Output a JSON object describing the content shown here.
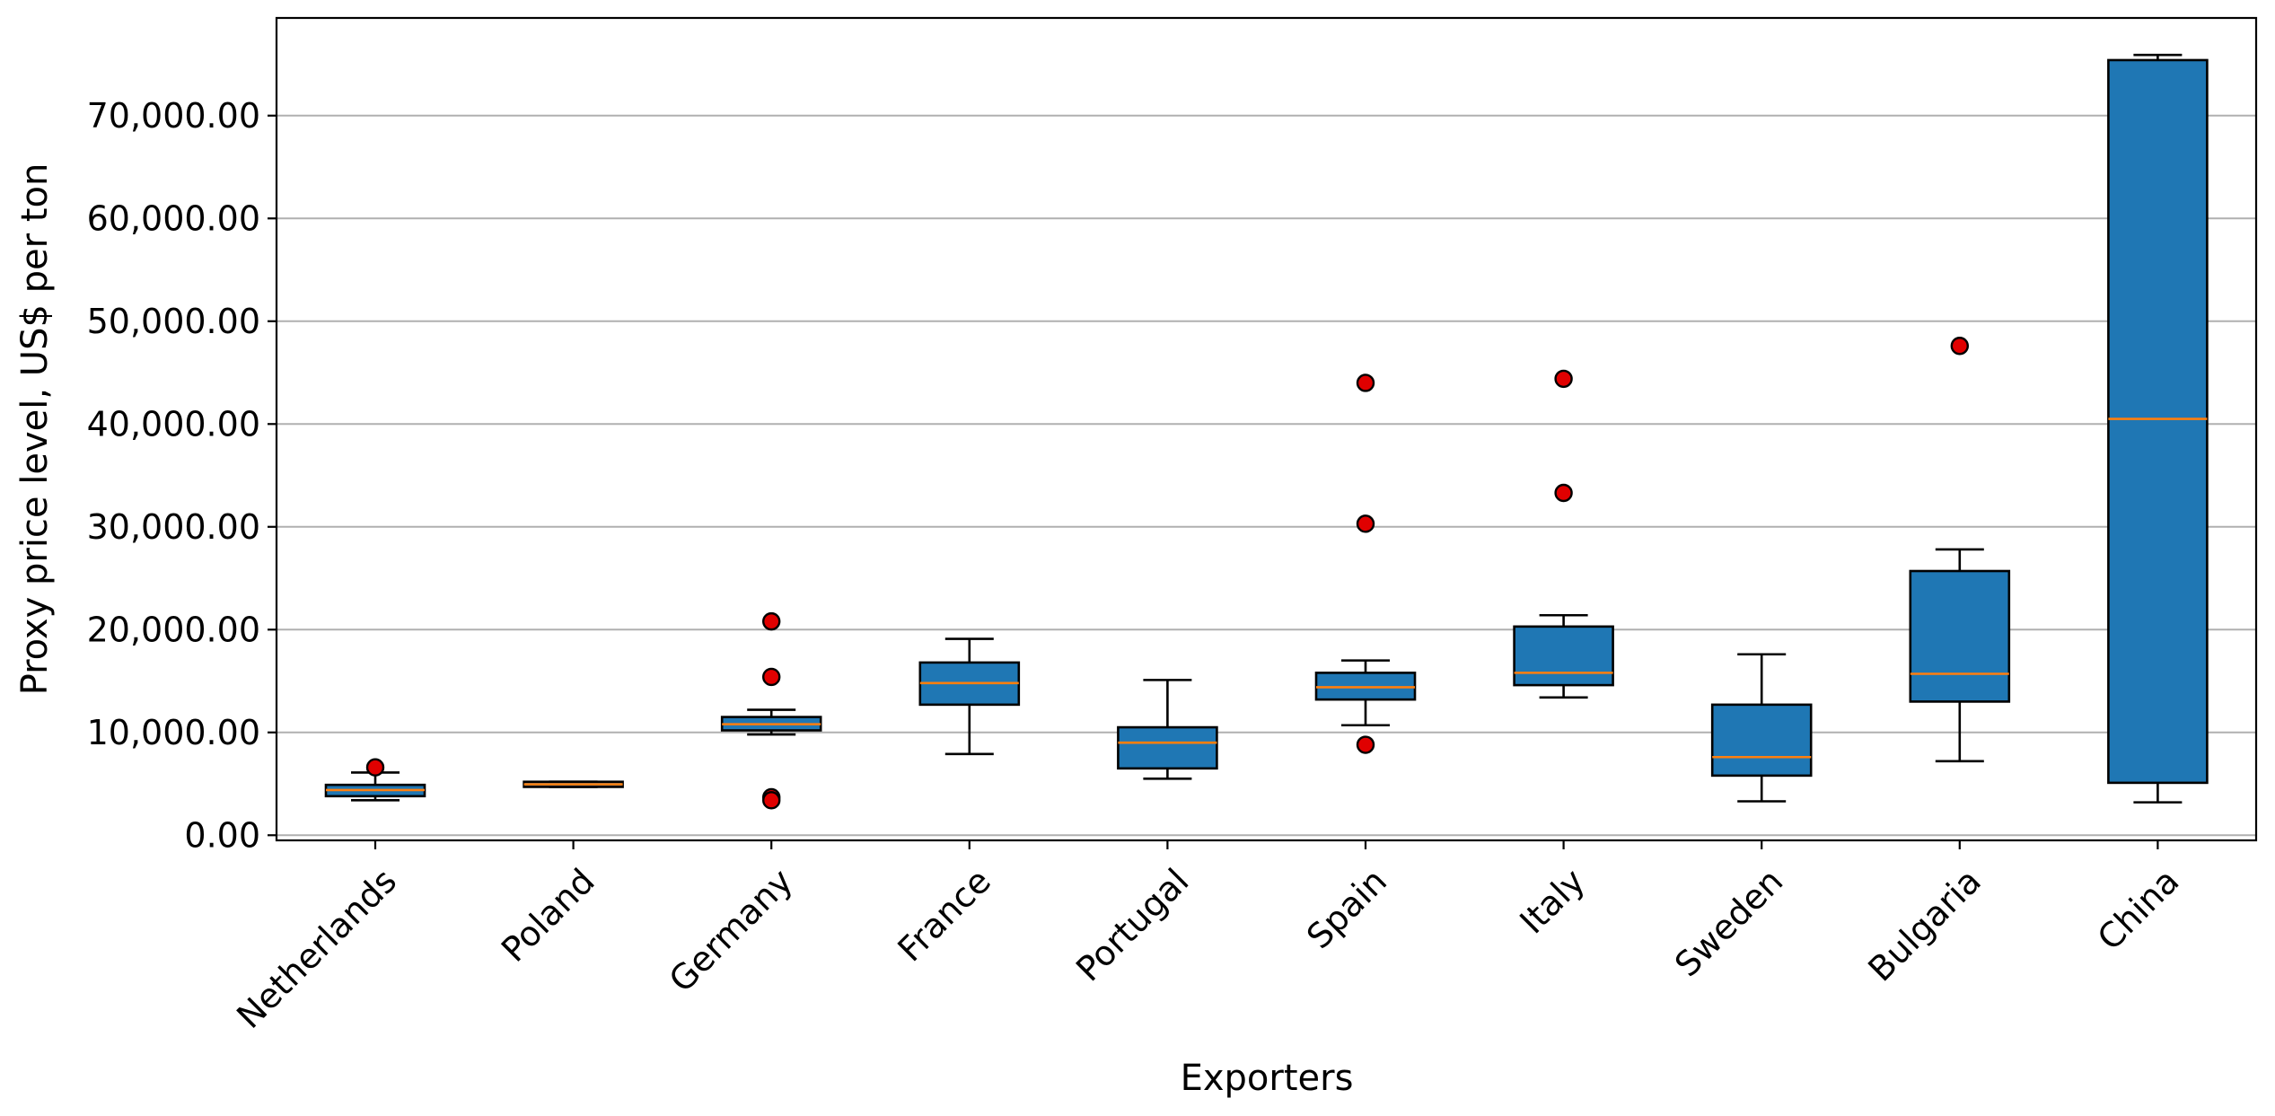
{
  "chart_data": {
    "type": "box",
    "xlabel": "Exporters",
    "ylabel": "Proxy price level, US$ per ton",
    "ylim": [
      -500,
      79500
    ],
    "yticks": [
      0,
      10000,
      20000,
      30000,
      40000,
      50000,
      60000,
      70000
    ],
    "ytick_labels": [
      "0.00",
      "10,000.00",
      "20,000.00",
      "30,000.00",
      "40,000.00",
      "50,000.00",
      "60,000.00",
      "70,000.00"
    ],
    "grid": "horizontal",
    "colors": {
      "box_fill": "#1f77b4",
      "median": "#ff7f0e",
      "flier_fill": "#e00000",
      "edge": "#000000",
      "grid": "#b0b0b0"
    },
    "categories": [
      "Netherlands",
      "Poland",
      "Germany",
      "France",
      "Portugal",
      "Spain",
      "Italy",
      "Sweden",
      "Bulgaria",
      "China"
    ],
    "boxes": [
      {
        "label": "Netherlands",
        "whislo": 3400,
        "q1": 3800,
        "median": 4400,
        "q3": 4900,
        "whishi": 6100,
        "fliers": [
          6600
        ]
      },
      {
        "label": "Poland",
        "whislo": 4700,
        "q1": 4700,
        "median": 4950,
        "q3": 5200,
        "whishi": 5200,
        "fliers": []
      },
      {
        "label": "Germany",
        "whislo": 9800,
        "q1": 10200,
        "median": 10800,
        "q3": 11500,
        "whishi": 12200,
        "fliers": [
          20800,
          15400,
          3700,
          3400
        ]
      },
      {
        "label": "France",
        "whislo": 7900,
        "q1": 12700,
        "median": 14800,
        "q3": 16800,
        "whishi": 19100,
        "fliers": []
      },
      {
        "label": "Portugal",
        "whislo": 5500,
        "q1": 6500,
        "median": 9000,
        "q3": 10500,
        "whishi": 15100,
        "fliers": []
      },
      {
        "label": "Spain",
        "whislo": 10700,
        "q1": 13200,
        "median": 14400,
        "q3": 15800,
        "whishi": 17000,
        "fliers": [
          44000,
          30300,
          8800
        ]
      },
      {
        "label": "Italy",
        "whislo": 13400,
        "q1": 14600,
        "median": 15800,
        "q3": 20300,
        "whishi": 21400,
        "fliers": [
          44400,
          33300
        ]
      },
      {
        "label": "Sweden",
        "whislo": 3300,
        "q1": 5800,
        "median": 7600,
        "q3": 12700,
        "whishi": 17600,
        "fliers": []
      },
      {
        "label": "Bulgaria",
        "whislo": 7200,
        "q1": 13000,
        "median": 15700,
        "q3": 25700,
        "whishi": 27800,
        "fliers": [
          47600
        ]
      },
      {
        "label": "China",
        "whislo": 3200,
        "q1": 5100,
        "median": 40500,
        "q3": 75400,
        "whishi": 75900,
        "fliers": []
      }
    ]
  }
}
